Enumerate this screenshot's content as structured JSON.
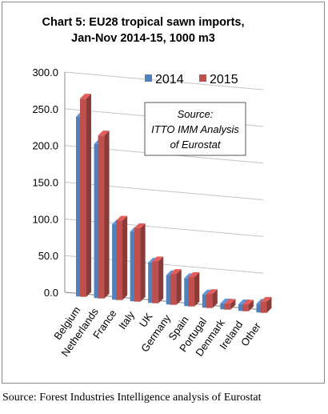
{
  "chart_data": {
    "type": "bar",
    "title_line1": "Chart 5: EU28 tropical sawn imports,",
    "title_line2": "Jan-Nov 2014-15, 1000 m3",
    "categories": [
      "Belgium",
      "Netherlands",
      "France",
      "Italy",
      "UK",
      "Germany",
      "Spain",
      "Portugal",
      "Denmark",
      "Ireland",
      "Other"
    ],
    "series": [
      {
        "name": "2014",
        "color": "#4f81bd",
        "values": [
          245,
          210,
          103,
          95,
          55,
          40,
          38,
          18,
          8,
          9,
          12
        ]
      },
      {
        "name": "2015",
        "color": "#c0504d",
        "values": [
          270,
          222,
          108,
          100,
          57,
          42,
          40,
          19,
          8,
          9,
          15
        ]
      }
    ],
    "yticks": [
      "0.0",
      "50.0",
      "100.0",
      "150.0",
      "200.0",
      "250.0",
      "300.0"
    ],
    "ylim": [
      0,
      300
    ],
    "grid": true,
    "legend_placement": "top-right",
    "note_lines": [
      "Source:",
      "ITTO IMM Analysis",
      "of Eurostat"
    ]
  },
  "source_caption": "Source: Forest Industries Intelligence analysis of Eurostat"
}
